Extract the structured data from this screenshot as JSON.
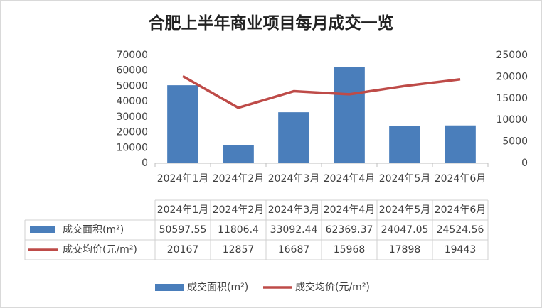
{
  "chart_data": {
    "type": "bar",
    "title": "合肥上半年商业项目每月成交一览",
    "categories": [
      "2024年1月",
      "2024年2月",
      "2024年3月",
      "2024年4月",
      "2024年5月",
      "2024年6月"
    ],
    "series": [
      {
        "name": "成交面积(m²)",
        "color": "#4a7ebb",
        "values": [
          50597.55,
          11806.4,
          33092.44,
          62369.37,
          24047.05,
          24524.56
        ]
      },
      {
        "name": "成交均价(元/m²)",
        "color": "#be4b48",
        "type": "line",
        "axis": "y2",
        "values": [
          20167,
          12857,
          16687,
          15968,
          17898,
          19443
        ]
      }
    ],
    "ylim": [
      0,
      70000
    ],
    "yticks": [
      0,
      10000,
      20000,
      30000,
      40000,
      50000,
      60000,
      70000
    ],
    "y2lim": [
      0,
      25000
    ],
    "y2ticks": [
      0,
      5000,
      10000,
      15000,
      20000,
      25000
    ]
  }
}
